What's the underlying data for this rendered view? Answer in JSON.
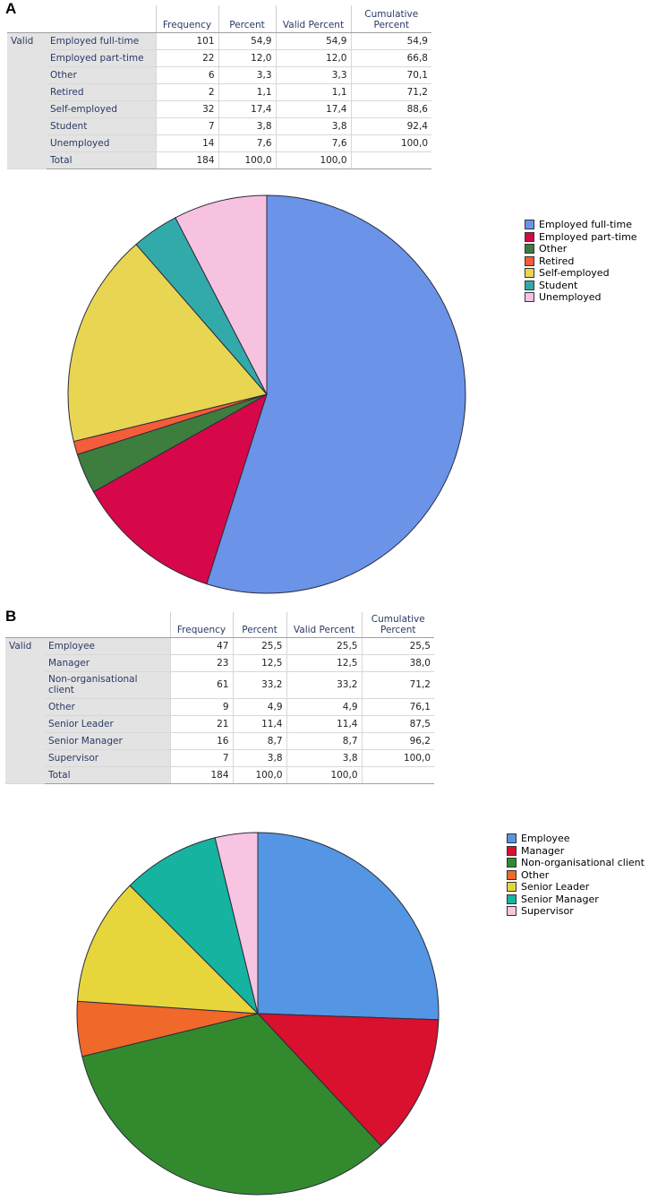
{
  "panels": [
    {
      "letter": "A",
      "table": {
        "headers": [
          "Frequency",
          "Percent",
          "Valid Percent",
          "Cumulative Percent"
        ],
        "group_label": "Valid",
        "rows": [
          {
            "label": "Employed full-time",
            "frequency": "101",
            "percent": "54,9",
            "valid_percent": "54,9",
            "cumulative": "54,9"
          },
          {
            "label": "Employed part-time",
            "frequency": "22",
            "percent": "12,0",
            "valid_percent": "12,0",
            "cumulative": "66,8"
          },
          {
            "label": "Other",
            "frequency": "6",
            "percent": "3,3",
            "valid_percent": "3,3",
            "cumulative": "70,1"
          },
          {
            "label": "Retired",
            "frequency": "2",
            "percent": "1,1",
            "valid_percent": "1,1",
            "cumulative": "71,2"
          },
          {
            "label": "Self-employed",
            "frequency": "32",
            "percent": "17,4",
            "valid_percent": "17,4",
            "cumulative": "88,6"
          },
          {
            "label": "Student",
            "frequency": "7",
            "percent": "3,8",
            "valid_percent": "3,8",
            "cumulative": "92,4"
          },
          {
            "label": "Unemployed",
            "frequency": "14",
            "percent": "7,6",
            "valid_percent": "7,6",
            "cumulative": "100,0"
          }
        ],
        "total": {
          "label": "Total",
          "frequency": "184",
          "percent": "100,0",
          "valid_percent": "100,0",
          "cumulative": ""
        }
      }
    },
    {
      "letter": "B",
      "table": {
        "headers": [
          "Frequency",
          "Percent",
          "Valid Percent",
          "Cumulative Percent"
        ],
        "group_label": "Valid",
        "rows": [
          {
            "label": "Employee",
            "frequency": "47",
            "percent": "25,5",
            "valid_percent": "25,5",
            "cumulative": "25,5"
          },
          {
            "label": "Manager",
            "frequency": "23",
            "percent": "12,5",
            "valid_percent": "12,5",
            "cumulative": "38,0"
          },
          {
            "label": "Non-organisational client",
            "frequency": "61",
            "percent": "33,2",
            "valid_percent": "33,2",
            "cumulative": "71,2"
          },
          {
            "label": "Other",
            "frequency": "9",
            "percent": "4,9",
            "valid_percent": "4,9",
            "cumulative": "76,1"
          },
          {
            "label": "Senior Leader",
            "frequency": "21",
            "percent": "11,4",
            "valid_percent": "11,4",
            "cumulative": "87,5"
          },
          {
            "label": "Senior Manager",
            "frequency": "16",
            "percent": "8,7",
            "valid_percent": "8,7",
            "cumulative": "96,2"
          },
          {
            "label": "Supervisor",
            "frequency": "7",
            "percent": "3,8",
            "valid_percent": "3,8",
            "cumulative": "100,0"
          }
        ],
        "total": {
          "label": "Total",
          "frequency": "184",
          "percent": "100,0",
          "valid_percent": "100,0",
          "cumulative": ""
        }
      }
    }
  ],
  "chart_data": [
    {
      "type": "pie",
      "title": "",
      "categories": [
        "Employed full-time",
        "Employed part-time",
        "Other",
        "Retired",
        "Self-employed",
        "Student",
        "Unemployed"
      ],
      "values": [
        101,
        22,
        6,
        2,
        32,
        7,
        14
      ],
      "colors": [
        "#6b93e8",
        "#d6084a",
        "#3d7d3d",
        "#f45c3a",
        "#e8d552",
        "#33aaaa",
        "#f7c2e0"
      ],
      "start": "12 o'clock",
      "direction": "clockwise",
      "legend": "right"
    },
    {
      "type": "pie",
      "title": "",
      "categories": [
        "Employee",
        "Manager",
        "Non-organisational client",
        "Other",
        "Senior Leader",
        "Senior Manager",
        "Supervisor"
      ],
      "values": [
        47,
        23,
        61,
        9,
        21,
        16,
        7
      ],
      "colors": [
        "#5496e3",
        "#d9102e",
        "#338a2e",
        "#f0682a",
        "#e6d63c",
        "#16b3a0",
        "#f7c4e1"
      ],
      "start": "12 o'clock",
      "direction": "clockwise",
      "legend": "right"
    }
  ]
}
